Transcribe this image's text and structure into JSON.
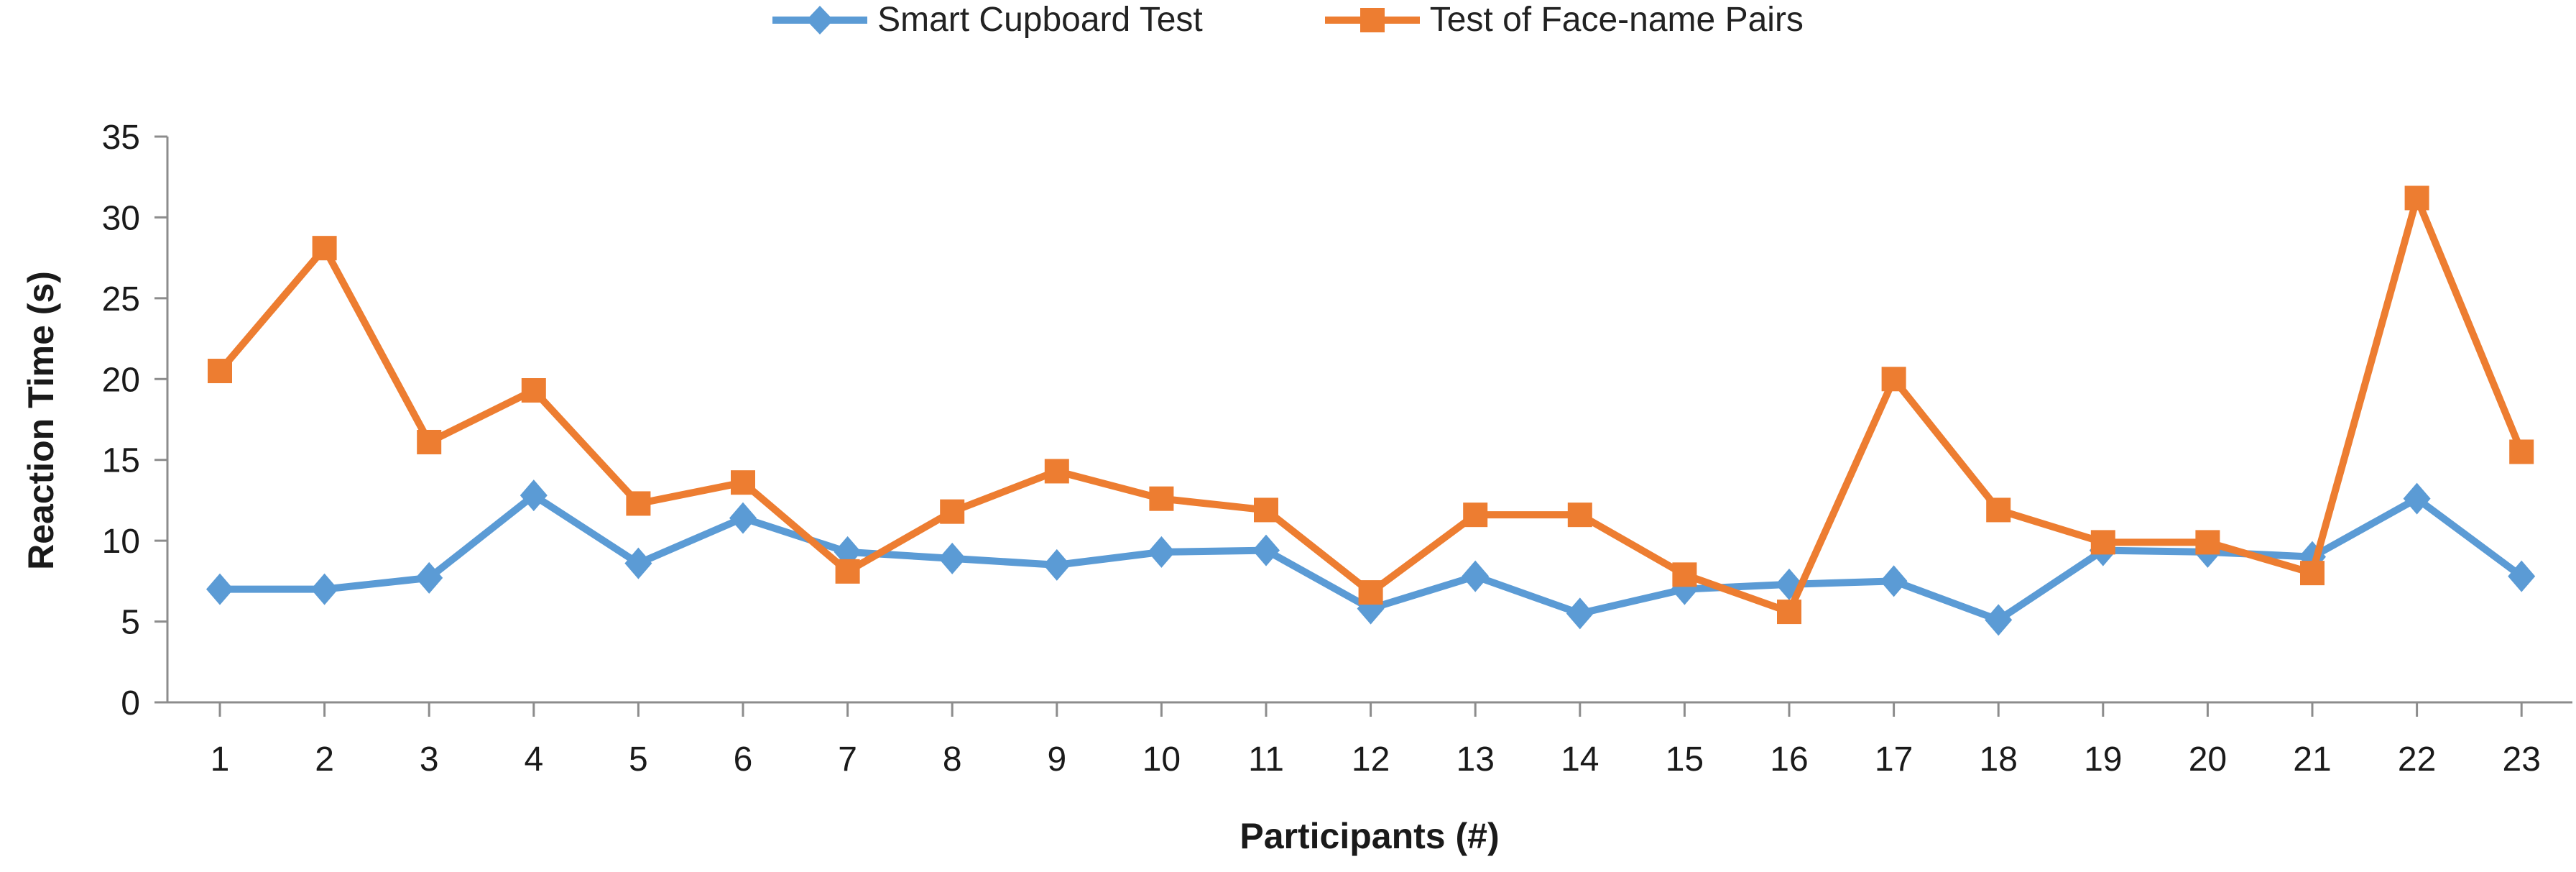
{
  "chart_data": {
    "type": "line",
    "title": "",
    "xlabel": "Participants (#)",
    "ylabel": "Reaction Time (s)",
    "ylim": [
      0,
      35
    ],
    "yticks": [
      0,
      5,
      10,
      15,
      20,
      25,
      30,
      35
    ],
    "grid": false,
    "legend_position": "top-center",
    "categories": [
      "1",
      "2",
      "3",
      "4",
      "5",
      "6",
      "7",
      "8",
      "9",
      "10",
      "11",
      "12",
      "13",
      "14",
      "15",
      "16",
      "17",
      "18",
      "19",
      "20",
      "21",
      "22",
      "23"
    ],
    "series": [
      {
        "name": "Smart Cupboard Test",
        "marker": "diamond",
        "color": "#5B9BD5",
        "values": [
          7.0,
          7.0,
          7.7,
          12.8,
          8.6,
          11.4,
          9.3,
          8.9,
          8.5,
          9.3,
          9.4,
          5.8,
          7.8,
          5.5,
          7.0,
          7.3,
          7.5,
          5.1,
          9.4,
          9.3,
          9.0,
          12.6,
          7.8
        ]
      },
      {
        "name": "Test of Face-name Pairs",
        "marker": "square",
        "color": "#ED7D31",
        "values": [
          20.5,
          28.1,
          16.1,
          19.3,
          12.3,
          13.6,
          8.1,
          11.8,
          14.3,
          12.6,
          11.9,
          6.8,
          11.6,
          11.6,
          7.9,
          5.6,
          20.0,
          11.9,
          9.9,
          9.9,
          8.0,
          31.2,
          15.5
        ]
      }
    ]
  },
  "colors": {
    "axis": "#8c8c8c",
    "text": "#1a1a1a"
  }
}
